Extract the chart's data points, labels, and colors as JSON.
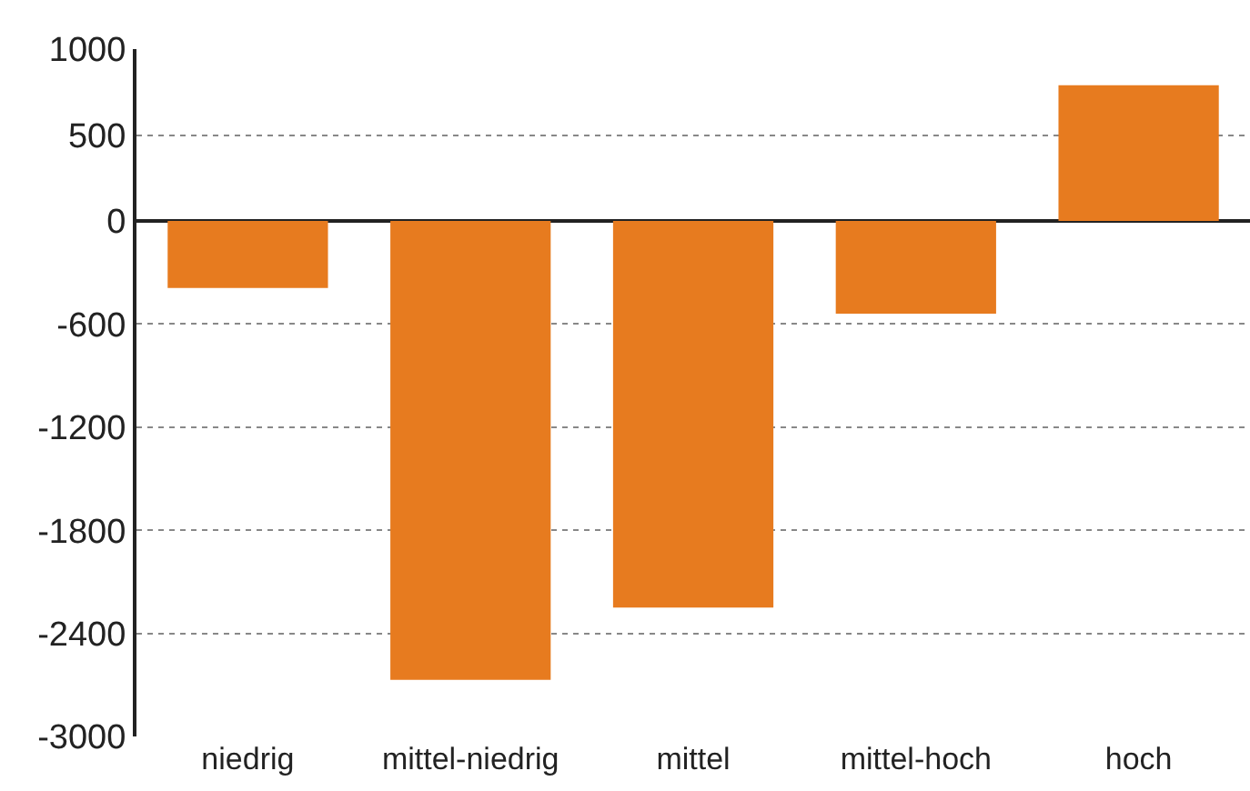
{
  "chart_data": {
    "type": "bar",
    "categories": [
      "niedrig",
      "mittel-niedrig",
      "mittel",
      "mittel-hoch",
      "hoch"
    ],
    "values": [
      -390,
      -2670,
      -2250,
      -540,
      790
    ],
    "color": "#e77b1f",
    "ylim": [
      -3000,
      1000
    ],
    "yticks": [
      1000,
      500,
      0,
      -600,
      -1200,
      -1800,
      -2400,
      -3000
    ],
    "grid": "y"
  }
}
